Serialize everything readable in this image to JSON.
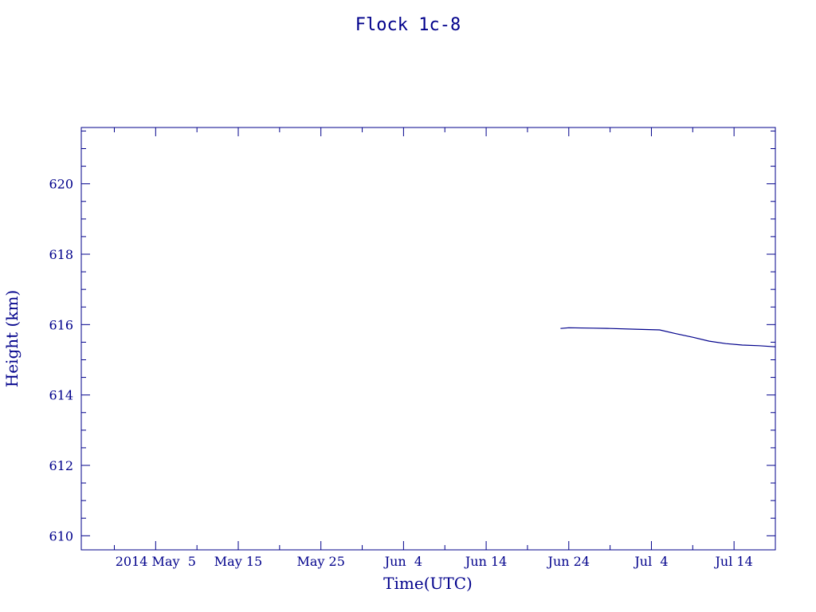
{
  "chart_data": {
    "type": "line",
    "title": "Flock 1c-8",
    "xlabel": "Time(UTC)",
    "ylabel": "Height (km)",
    "x_tick_labels": [
      "2014 May  5",
      "May 15",
      "May 25",
      "Jun  4",
      "Jun 14",
      "Jun 24",
      "Jul  4",
      "Jul 14"
    ],
    "x_tick_values": [
      "2014-05-05",
      "2014-05-15",
      "2014-05-25",
      "2014-06-04",
      "2014-06-14",
      "2014-06-24",
      "2014-07-04",
      "2014-07-14"
    ],
    "y_tick_labels": [
      "610",
      "612",
      "614",
      "616",
      "618",
      "620"
    ],
    "y_tick_values": [
      610,
      612,
      614,
      616,
      618,
      620
    ],
    "xlim": [
      "2014-04-26",
      "2014-07-19"
    ],
    "ylim": [
      609.6,
      621.6
    ],
    "grid": false,
    "colors": {
      "axis": "#00008b",
      "line": "#00008b",
      "background": "#ffffff"
    },
    "series": [
      {
        "x": [
          "2014-06-23",
          "2014-06-24",
          "2014-06-27",
          "2014-06-29",
          "2014-07-02",
          "2014-07-05",
          "2014-07-07",
          "2014-07-09",
          "2014-07-11",
          "2014-07-13",
          "2014-07-15",
          "2014-07-17",
          "2014-07-19"
        ],
        "y": [
          615.89,
          615.91,
          615.9,
          615.89,
          615.87,
          615.85,
          615.74,
          615.64,
          615.53,
          615.46,
          615.42,
          615.4,
          615.37
        ]
      }
    ]
  }
}
